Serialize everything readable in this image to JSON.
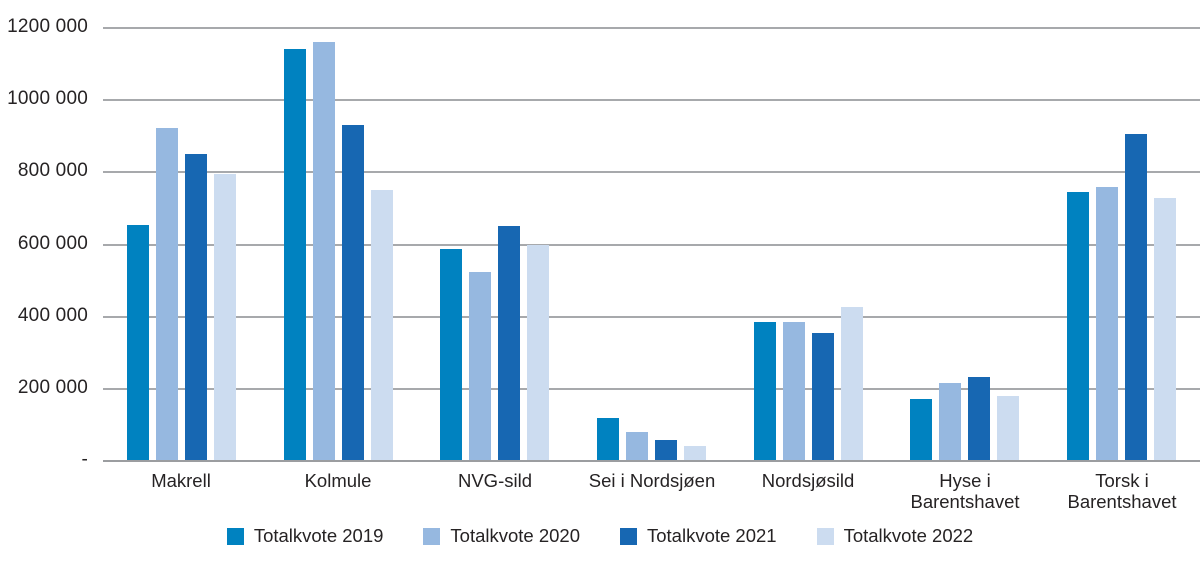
{
  "chart_data": {
    "type": "bar",
    "title": "",
    "xlabel": "",
    "ylabel": "",
    "grid": true,
    "legend_position": "bottom",
    "ylim": [
      0,
      1200000
    ],
    "y_ticks": [
      {
        "value": 1200000,
        "label": "1200 000"
      },
      {
        "value": 1000000,
        "label": "1000 000"
      },
      {
        "value": 800000,
        "label": "800 000"
      },
      {
        "value": 600000,
        "label": "600 000"
      },
      {
        "value": 400000,
        "label": "400 000"
      },
      {
        "value": 200000,
        "label": "200 000"
      },
      {
        "value": 0,
        "label": "-"
      }
    ],
    "categories": [
      "Makrell",
      "Kolmule",
      "NVG-sild",
      "Sei i Nordsjøen",
      "Nordsjøsild",
      "Hyse i\nBarentshavet",
      "Torsk i\nBarentshavet"
    ],
    "series": [
      {
        "name": "Totalkvote 2019",
        "color": "#0082C0",
        "values": [
          653000,
          1143000,
          588000,
          120000,
          385000,
          172000,
          745000
        ]
      },
      {
        "name": "Totalkvote 2020",
        "color": "#96B8E0",
        "values": [
          922000,
          1161000,
          525000,
          80000,
          385000,
          215000,
          758000
        ]
      },
      {
        "name": "Totalkvote 2021",
        "color": "#1767B2",
        "values": [
          852000,
          930000,
          651000,
          58000,
          356000,
          233000,
          906000
        ]
      },
      {
        "name": "Totalkvote 2022",
        "color": "#CCDCF0",
        "values": [
          795000,
          752000,
          599000,
          42000,
          427000,
          179000,
          730000
        ]
      }
    ]
  },
  "colors": {
    "background": "#ffffff",
    "gridline": "#a7a9ac",
    "text": "#262324"
  }
}
